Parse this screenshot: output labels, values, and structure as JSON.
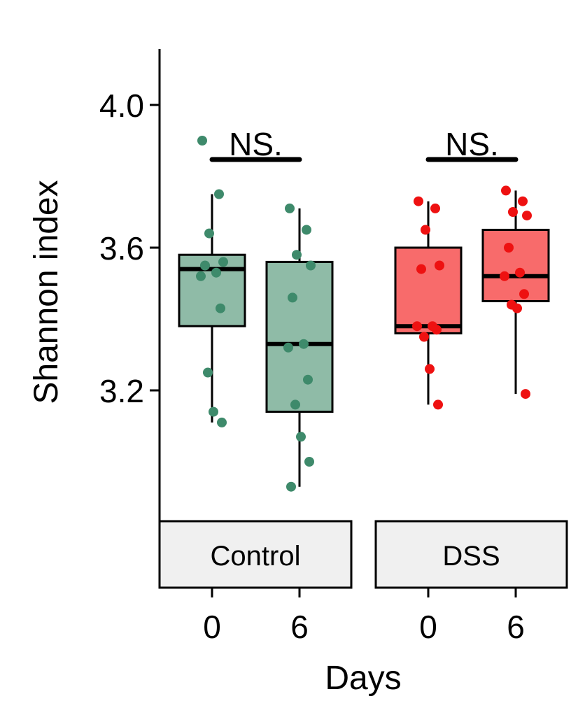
{
  "chart_data": {
    "type": "box",
    "ylabel": "Shannon index",
    "xlabel": "Days",
    "ylim": [
      2.86,
      4.16
    ],
    "yticks": [
      "3.2",
      "3.6",
      "4.0"
    ],
    "grid": false,
    "legend": "none",
    "facets": [
      {
        "label": "Control",
        "color": "#8fbba7",
        "point_color": "#3e8a6b",
        "significance": "NS.",
        "groups": [
          {
            "day": "0",
            "box": {
              "lower_whisker": 3.11,
              "q1": 3.38,
              "median": 3.54,
              "q3": 3.58,
              "upper_whisker": 3.75
            },
            "points": [
              3.9,
              3.75,
              3.64,
              3.56,
              3.55,
              3.53,
              3.52,
              3.43,
              3.25,
              3.14,
              3.11
            ]
          },
          {
            "day": "6",
            "box": {
              "lower_whisker": 2.93,
              "q1": 3.14,
              "median": 3.33,
              "q3": 3.56,
              "upper_whisker": 3.71
            },
            "points": [
              3.71,
              3.65,
              3.58,
              3.55,
              3.46,
              3.33,
              3.32,
              3.23,
              3.16,
              3.07,
              3.0,
              2.93
            ]
          }
        ]
      },
      {
        "label": "DSS",
        "color": "#f86b6b",
        "point_color": "#ee1111",
        "significance": "NS.",
        "groups": [
          {
            "day": "0",
            "box": {
              "lower_whisker": 3.16,
              "q1": 3.36,
              "median": 3.38,
              "q3": 3.6,
              "upper_whisker": 3.73
            },
            "points": [
              3.73,
              3.71,
              3.65,
              3.55,
              3.54,
              3.38,
              3.38,
              3.37,
              3.35,
              3.26,
              3.16
            ]
          },
          {
            "day": "6",
            "box": {
              "lower_whisker": 3.19,
              "q1": 3.45,
              "median": 3.52,
              "q3": 3.65,
              "upper_whisker": 3.76
            },
            "points": [
              3.76,
              3.73,
              3.7,
              3.69,
              3.6,
              3.53,
              3.52,
              3.47,
              3.44,
              3.43,
              3.19
            ]
          }
        ]
      }
    ]
  }
}
